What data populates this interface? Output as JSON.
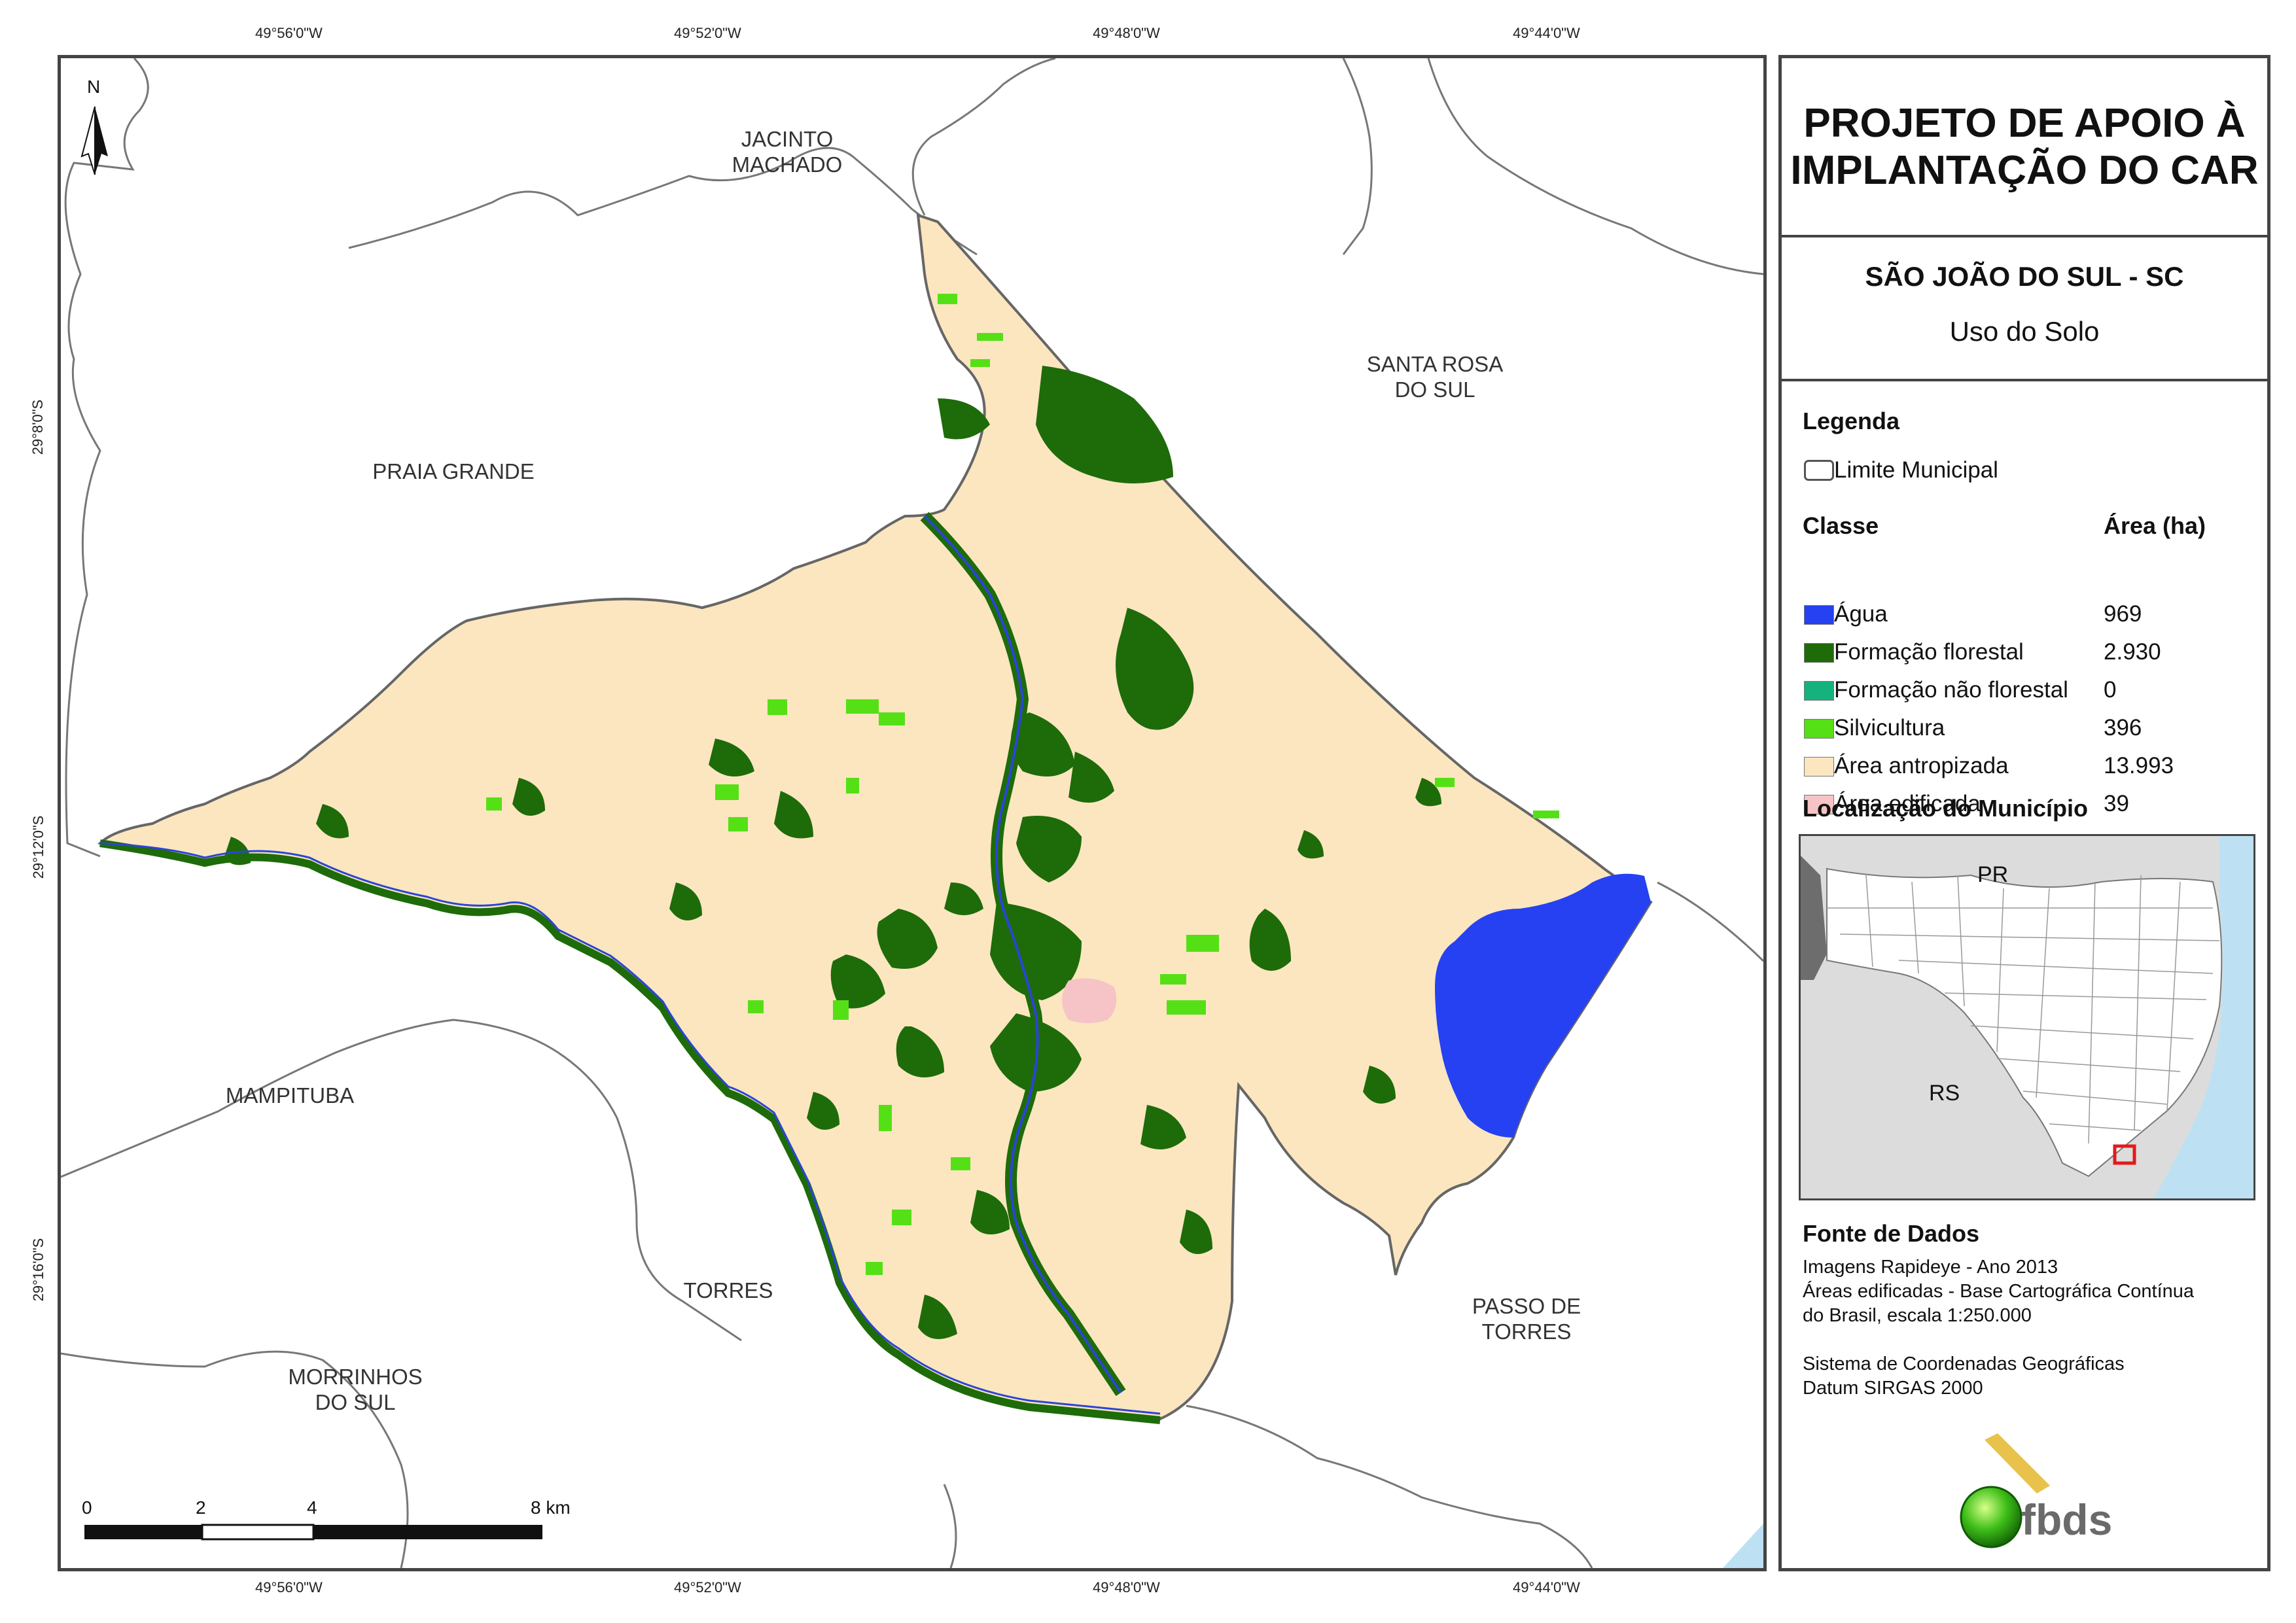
{
  "coords": {
    "top": [
      "49°56'0\"W",
      "49°52'0\"W",
      "49°48'0\"W",
      "49°44'0\"W"
    ],
    "bottom": [
      "49°56'0\"W",
      "49°52'0\"W",
      "49°48'0\"W",
      "49°44'0\"W"
    ],
    "left": [
      "29°8'0\"S",
      "29°12'0\"S",
      "29°16'0\"S"
    ]
  },
  "north_arrow": "N",
  "municipalities": {
    "jacinto": "JACINTO",
    "machado": "MACHADO",
    "santa_rosa": "SANTA ROSA",
    "do_sul_1": "DO SUL",
    "praia_grande": "PRAIA GRANDE",
    "mampituba": "MAMPITUBA",
    "torres": "TORRES",
    "passo_de": "PASSO DE",
    "torres_2": "TORRES",
    "morrinhos": "MORRINHOS",
    "do_sul_2": "DO SUL"
  },
  "scale_bar": {
    "l0": "0",
    "l2": "2",
    "l4": "4",
    "l8": "8 km"
  },
  "panel": {
    "title_line1": "PROJETO DE APOIO À",
    "title_line2": "IMPLANTAÇÃO DO CAR",
    "subtitle": "SÃO JOÃO DO SUL - SC",
    "subsubtitle": "Uso do Solo",
    "legend_title": "Legenda",
    "limit_label": "Limite Municipal",
    "class_header": "Classe",
    "area_header": "Área (ha)",
    "classes": [
      {
        "label": "Água",
        "area": "969",
        "color": "#2541f2"
      },
      {
        "label": "Formação florestal",
        "area": "2.930",
        "color": "#1e6b0a"
      },
      {
        "label": "Formação não florestal",
        "area": "0",
        "color": "#16b27e"
      },
      {
        "label": "Silvicultura",
        "area": "396",
        "color": "#55e016"
      },
      {
        "label": "Área antropizada",
        "area": "13.993",
        "color": "#fbe6c0"
      },
      {
        "label": "Área edificada",
        "area": "39",
        "color": "#f6c4c6"
      }
    ],
    "location_title": "Localização do Município",
    "inset": {
      "pr": "PR",
      "rs": "RS"
    },
    "source_title": "Fonte de Dados",
    "source_lines": [
      "Imagens Rapideye - Ano 2013",
      "Áreas edificadas - Base Cartográfica Contínua",
      "do Brasil, escala 1:250.000"
    ],
    "crs_lines": [
      "Sistema de Coordenadas Geográficas",
      "Datum SIRGAS 2000"
    ],
    "logo_text": "fbds"
  }
}
